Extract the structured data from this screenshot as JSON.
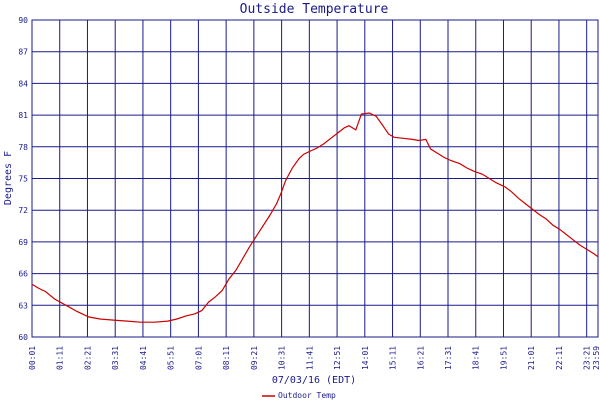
{
  "chart_data": {
    "type": "line",
    "title": "Outside Temperature",
    "xlabel": "07/03/16 (EDT)",
    "ylabel": "Degrees F",
    "ylim": [
      60,
      90
    ],
    "yticks": [
      60,
      63,
      66,
      69,
      72,
      75,
      78,
      81,
      84,
      87,
      90
    ],
    "x_tick_labels": [
      "00:01",
      "01:11",
      "02:21",
      "03:31",
      "04:41",
      "05:51",
      "07:01",
      "08:11",
      "09:21",
      "10:31",
      "11:41",
      "12:51",
      "14:01",
      "15:11",
      "16:21",
      "17:31",
      "18:41",
      "19:51",
      "21:01",
      "22:11",
      "23:21",
      "23:59"
    ],
    "grid": true,
    "legend_position": "bottom-left",
    "colors": {
      "series": "#cc0000",
      "grid": "#1a1a8c",
      "frame": "#1a1a8c",
      "text": "#1a1a8c"
    },
    "series": [
      {
        "name": "Outdoor Temp",
        "points": [
          [
            0,
            65.0
          ],
          [
            0.3,
            64.6
          ],
          [
            0.6,
            64.3
          ],
          [
            1.0,
            63.6
          ],
          [
            1.5,
            63.0
          ],
          [
            2.0,
            62.4
          ],
          [
            2.5,
            61.9
          ],
          [
            3.0,
            61.7
          ],
          [
            3.6,
            61.6
          ],
          [
            4.2,
            61.5
          ],
          [
            4.8,
            61.4
          ],
          [
            5.4,
            61.4
          ],
          [
            6.0,
            61.5
          ],
          [
            6.4,
            61.7
          ],
          [
            6.8,
            62.0
          ],
          [
            7.2,
            62.2
          ],
          [
            7.5,
            62.5
          ],
          [
            7.8,
            63.3
          ],
          [
            8.1,
            63.8
          ],
          [
            8.4,
            64.4
          ],
          [
            8.7,
            65.5
          ],
          [
            9.0,
            66.3
          ],
          [
            9.3,
            67.4
          ],
          [
            9.6,
            68.5
          ],
          [
            9.9,
            69.5
          ],
          [
            10.2,
            70.5
          ],
          [
            10.5,
            71.5
          ],
          [
            10.8,
            72.6
          ],
          [
            11.0,
            73.6
          ],
          [
            11.2,
            74.8
          ],
          [
            11.5,
            76.0
          ],
          [
            11.8,
            76.9
          ],
          [
            12.0,
            77.3
          ],
          [
            12.3,
            77.6
          ],
          [
            12.6,
            77.9
          ],
          [
            12.9,
            78.3
          ],
          [
            13.2,
            78.8
          ],
          [
            13.5,
            79.3
          ],
          [
            13.8,
            79.8
          ],
          [
            14.0,
            80.0
          ],
          [
            14.3,
            79.6
          ],
          [
            14.55,
            81.1
          ],
          [
            14.9,
            81.2
          ],
          [
            15.2,
            80.9
          ],
          [
            15.5,
            80.0
          ],
          [
            15.75,
            79.2
          ],
          [
            16.0,
            78.9
          ],
          [
            16.4,
            78.8
          ],
          [
            16.8,
            78.7
          ],
          [
            17.1,
            78.6
          ],
          [
            17.4,
            78.7
          ],
          [
            17.6,
            77.8
          ],
          [
            17.9,
            77.4
          ],
          [
            18.2,
            77.0
          ],
          [
            18.5,
            76.7
          ],
          [
            18.9,
            76.4
          ],
          [
            19.2,
            76.0
          ],
          [
            19.5,
            75.7
          ],
          [
            19.9,
            75.4
          ],
          [
            20.2,
            75.0
          ],
          [
            20.5,
            74.6
          ],
          [
            20.9,
            74.2
          ],
          [
            21.2,
            73.7
          ],
          [
            21.5,
            73.1
          ],
          [
            21.8,
            72.6
          ],
          [
            22.1,
            72.1
          ],
          [
            22.4,
            71.6
          ],
          [
            22.7,
            71.2
          ],
          [
            23.0,
            70.6
          ],
          [
            23.3,
            70.2
          ],
          [
            23.6,
            69.7
          ],
          [
            23.9,
            69.2
          ],
          [
            24.2,
            68.7
          ],
          [
            24.5,
            68.3
          ],
          [
            24.8,
            67.9
          ],
          [
            25.0,
            67.6
          ]
        ]
      }
    ]
  }
}
